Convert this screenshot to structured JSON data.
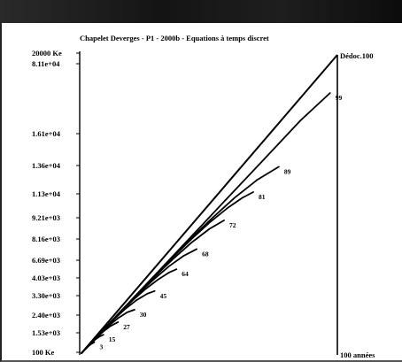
{
  "window": {
    "title": ""
  },
  "chart_data": {
    "type": "line",
    "title": "Chapelet Deverges - P1 - 2000b - Equations à temps discret",
    "xlabel": "100 années",
    "ylabel": "",
    "y_tick_labels": [
      "20000 Ke",
      "8.11e+04",
      "1.61e+04",
      "1.36e+04",
      "1.13e+04",
      "9.21e+03",
      "8.16e+03",
      "6.69e+03",
      "4.03e+03",
      "3.30e+03",
      "2.40e+03",
      "1.53e+03",
      "100 Ke"
    ],
    "upper_line_label": "Dédoc.100",
    "series": [
      {
        "label": "3",
        "x": [
          0,
          0.7,
          1.4,
          2.1,
          2.8,
          3.5
        ],
        "y": [
          0,
          0.7,
          1.35,
          1.95,
          2.45,
          2.8
        ]
      },
      {
        "label": "15",
        "x": [
          0,
          1,
          2,
          3,
          4,
          5,
          6
        ],
        "y": [
          0,
          1,
          1.95,
          2.85,
          3.65,
          4.3,
          4.75
        ]
      },
      {
        "label": "27",
        "x": [
          0,
          2,
          4,
          6,
          8,
          10
        ],
        "y": [
          0,
          2,
          3.9,
          5.6,
          7,
          8
        ]
      },
      {
        "label": "30",
        "x": [
          0,
          2.5,
          5,
          7.5,
          10,
          12.5,
          14.5
        ],
        "y": [
          0,
          2.5,
          4.9,
          7.1,
          9,
          10.5,
          11.2
        ]
      },
      {
        "label": "45",
        "x": [
          0,
          3,
          6,
          9,
          12,
          15,
          18,
          20
        ],
        "y": [
          0,
          3,
          5.95,
          8.8,
          11.4,
          13.6,
          15.3,
          16
        ]
      },
      {
        "label": "64",
        "x": [
          0,
          3.5,
          7,
          10.5,
          14,
          17.5,
          21,
          24,
          26
        ],
        "y": [
          0,
          3.5,
          7,
          10.4,
          13.6,
          16.5,
          19,
          20.8,
          21.6
        ]
      },
      {
        "label": "68",
        "x": [
          0,
          4,
          8,
          12,
          16,
          20,
          24,
          28,
          31.5
        ],
        "y": [
          0,
          4,
          8,
          11.9,
          15.7,
          19.2,
          22.4,
          25.1,
          26.8
        ]
      },
      {
        "label": "72",
        "x": [
          0,
          5,
          10,
          15,
          20,
          25,
          30,
          35,
          39
        ],
        "y": [
          0,
          5,
          10,
          14.9,
          19.7,
          24.2,
          28.4,
          32,
          34.2
        ]
      },
      {
        "label": "81",
        "x": [
          0,
          5,
          10,
          15,
          20,
          25,
          30,
          35,
          40,
          44,
          47
        ],
        "y": [
          0,
          5,
          10,
          15,
          19.9,
          24.7,
          29.3,
          33.6,
          37.4,
          40,
          41.5
        ]
      },
      {
        "label": "89",
        "x": [
          0,
          6,
          12,
          18,
          24,
          30,
          36,
          42,
          48,
          54
        ],
        "y": [
          0,
          6,
          12,
          18,
          23.9,
          29.6,
          35,
          40.1,
          44.6,
          48
        ]
      },
      {
        "label": "99",
        "x": [
          0,
          10,
          20,
          30,
          40,
          50,
          60,
          68
        ],
        "y": [
          0,
          10,
          20,
          30,
          40,
          50,
          60,
          67
        ]
      }
    ],
    "xlim": [
      0,
      70
    ],
    "ylim": [
      0,
      75
    ],
    "grid": false,
    "legend": "none"
  }
}
